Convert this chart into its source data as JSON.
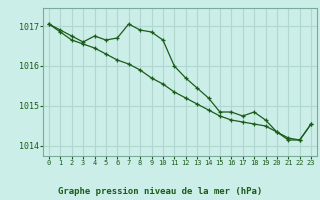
{
  "title": "Graphe pression niveau de la mer (hPa)",
  "background_color": "#cceee8",
  "grid_color": "#b0d8d0",
  "line_color": "#1a5c1a",
  "xlim": [
    -0.5,
    23.5
  ],
  "ylim": [
    1013.75,
    1017.45
  ],
  "yticks": [
    1014,
    1015,
    1016,
    1017
  ],
  "xticks": [
    0,
    1,
    2,
    3,
    4,
    5,
    6,
    7,
    8,
    9,
    10,
    11,
    12,
    13,
    14,
    15,
    16,
    17,
    18,
    19,
    20,
    21,
    22,
    23
  ],
  "series1": [
    1017.05,
    1016.9,
    1016.75,
    1016.6,
    1016.75,
    1016.65,
    1016.7,
    1017.05,
    1016.9,
    1016.85,
    1016.65,
    1016.0,
    1015.7,
    1015.45,
    1015.2,
    1014.85,
    1014.85,
    1014.75,
    1014.85,
    1014.65,
    1014.35,
    1014.15,
    1014.15,
    1014.55
  ],
  "series2": [
    1017.05,
    1016.85,
    1016.65,
    1016.55,
    1016.45,
    1016.3,
    1016.15,
    1016.05,
    1015.9,
    1015.7,
    1015.55,
    1015.35,
    1015.2,
    1015.05,
    1014.9,
    1014.75,
    1014.65,
    1014.6,
    1014.55,
    1014.5,
    1014.35,
    1014.2,
    1014.15,
    1014.55
  ]
}
